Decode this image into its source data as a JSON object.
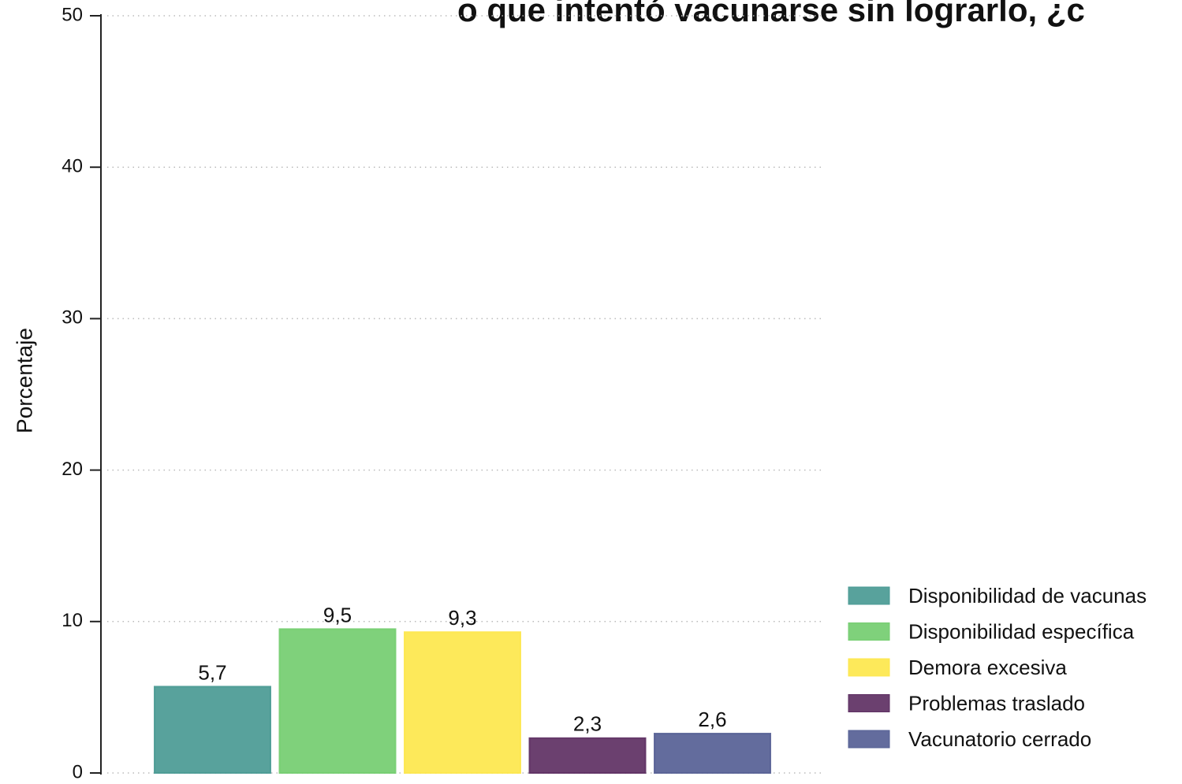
{
  "chart_data": {
    "type": "bar",
    "title": "o que intentó vacunarse sin lograrlo, ¿c",
    "ylabel": "Porcentaje",
    "categories": [
      "Disponibilidad de vacunas",
      "Disponibilidad específica",
      "Demora excesiva",
      "Problemas traslado",
      "Vacunatorio cerrado"
    ],
    "values": [
      5.7,
      9.5,
      9.3,
      2.3,
      2.6
    ],
    "value_labels": [
      "5,7",
      "9,5",
      "9,3",
      "2,3",
      "2,6"
    ],
    "colors": [
      "#4a9a94",
      "#74cd70",
      "#fde74c",
      "#5e3063",
      "#566095"
    ],
    "ylim": [
      0,
      50
    ],
    "yticks": [
      0,
      10,
      20,
      30,
      40,
      50
    ],
    "grid": true,
    "legend": "right"
  }
}
